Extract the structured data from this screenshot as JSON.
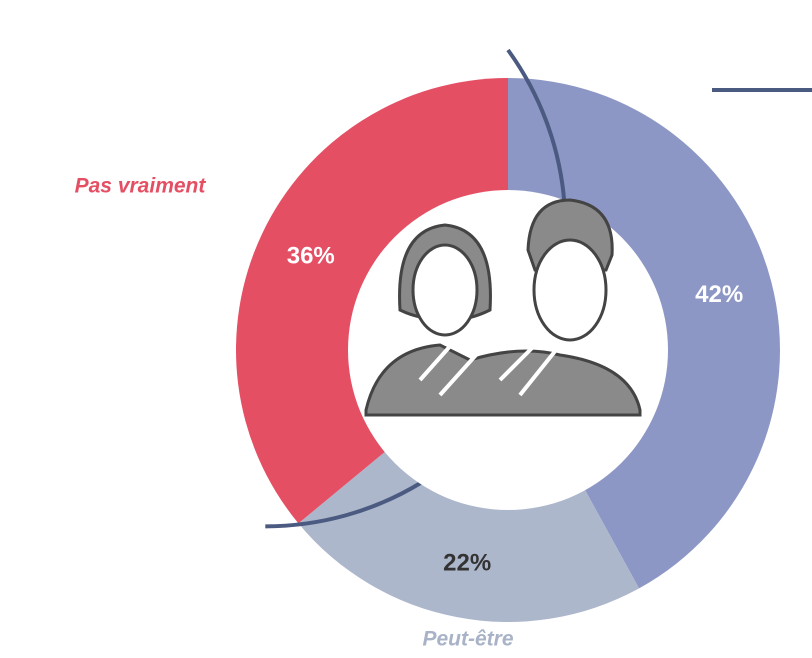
{
  "chart_data": {
    "type": "donut",
    "categories": [
      null,
      "Peut-être",
      "Pas vraiment"
    ],
    "values": [
      42,
      22,
      36
    ],
    "value_labels": [
      "42%",
      "22%",
      "36%"
    ],
    "colors": [
      "#8d97c5",
      "#adb7cc",
      "#e44f64"
    ],
    "label_colors": [
      "#ffffff",
      "#333333",
      "#ffffff"
    ],
    "category_colors": [
      null,
      "#a9b3c8",
      "#e44f64"
    ]
  }
}
